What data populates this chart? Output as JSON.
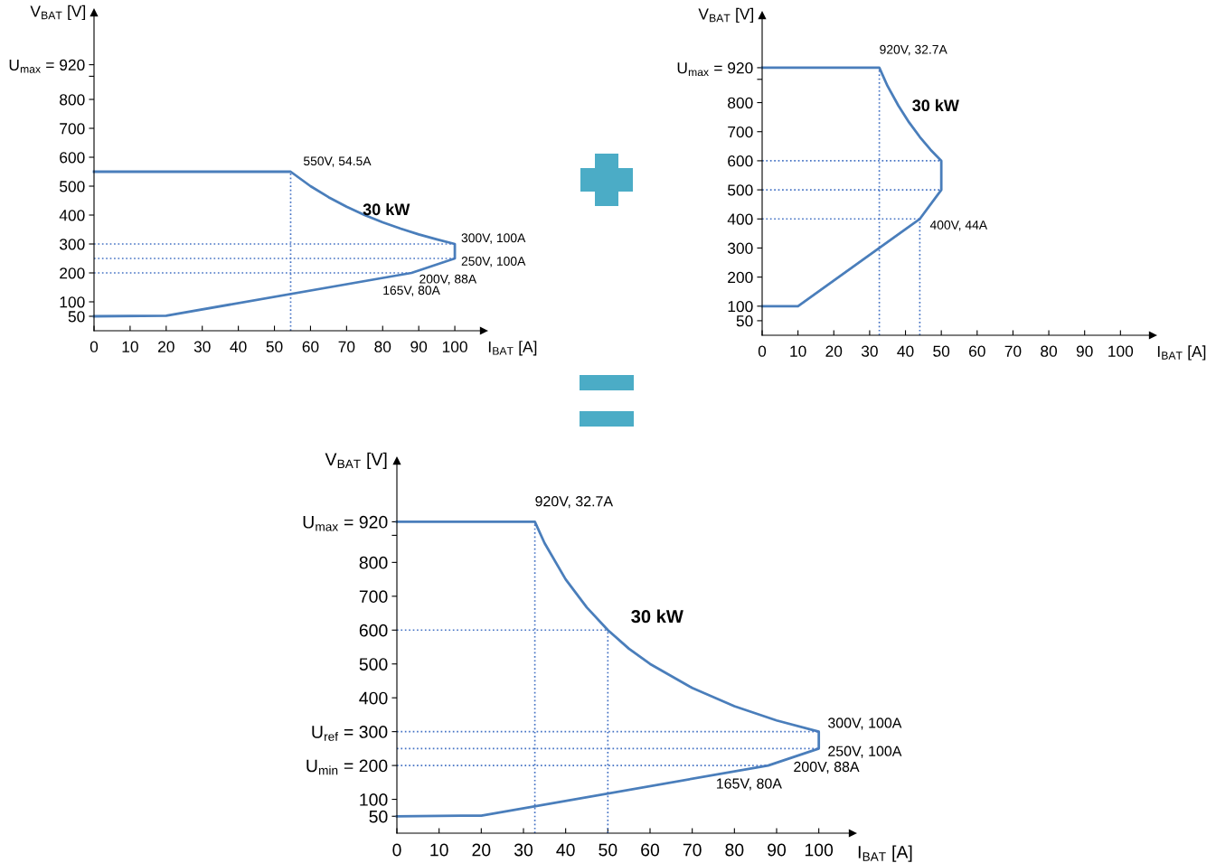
{
  "chart_data": [
    {
      "type": "line",
      "xlabel": "I$_{BAT}$ [A]",
      "ylabel": "V$_{BAT}$ [V]",
      "xlim": [
        0,
        108
      ],
      "ylim": [
        0,
        1100
      ],
      "xticks": [
        0,
        10,
        20,
        30,
        40,
        50,
        60,
        70,
        80,
        90,
        100
      ],
      "yticks": [
        50,
        100,
        200,
        300,
        400,
        500,
        600,
        700,
        800,
        {
          "value": 880,
          "label": null
        },
        {
          "value": 920,
          "label": "U$_{max}$ = 920"
        }
      ],
      "series": [
        {
          "color": "#4a7ebb",
          "line_style": "solid",
          "x": [
            0,
            54.5,
            60,
            65,
            70,
            75,
            80,
            85,
            90,
            95,
            100,
            100,
            88,
            20,
            0
          ],
          "values": [
            550,
            550,
            500,
            462,
            429,
            400,
            375,
            353,
            333,
            316,
            300,
            250,
            200,
            52,
            50
          ]
        },
        {
          "color": "#4472c4",
          "line_style": "dotted",
          "x": [
            54.5,
            54.5
          ],
          "values": [
            0,
            550
          ]
        },
        {
          "color": "#4472c4",
          "line_style": "dotted",
          "x": [
            0,
            100
          ],
          "values": [
            300,
            300
          ]
        },
        {
          "color": "#4472c4",
          "line_style": "dotted",
          "x": [
            0,
            100
          ],
          "values": [
            250,
            250
          ]
        },
        {
          "color": "#4472c4",
          "line_style": "dotted",
          "x": [
            0,
            88
          ],
          "values": [
            200,
            200
          ]
        }
      ],
      "annotations": [
        {
          "text": "550V, 54.5A",
          "x": 54.5,
          "y": 550
        },
        {
          "text": "300V, 100A",
          "x": 100,
          "y": 300
        },
        {
          "text": "250V, 100A",
          "x": 100,
          "y": 250
        },
        {
          "text": "200V, 88A",
          "x": 88,
          "y": 200
        },
        {
          "text": "165V, 80A",
          "x": 80,
          "y": 165
        },
        "30 kW"
      ]
    },
    {
      "type": "line",
      "xlabel": "I$_{BAT}$ [A]",
      "ylabel": "V$_{BAT}$ [V]",
      "xlim": [
        0,
        109
      ],
      "ylim": [
        0,
        1100
      ],
      "xticks": [
        0,
        10,
        20,
        30,
        40,
        50,
        60,
        70,
        80,
        90,
        100
      ],
      "yticks": [
        50,
        100,
        200,
        300,
        400,
        500,
        600,
        700,
        800,
        {
          "value": 880,
          "label": null
        },
        {
          "value": 920,
          "label": "U$_{max}$ = 920"
        }
      ],
      "series": [
        {
          "color": "#4a7ebb",
          "line_style": "solid",
          "x": [
            0,
            32.7,
            35,
            38,
            41,
            44,
            47,
            50,
            50,
            44,
            10,
            0
          ],
          "values": [
            920,
            920,
            857,
            790,
            732,
            682,
            638,
            600,
            500,
            400,
            100,
            100
          ]
        },
        {
          "color": "#4472c4",
          "line_style": "dotted",
          "x": [
            32.7,
            32.7
          ],
          "values": [
            0,
            920
          ]
        },
        {
          "color": "#4472c4",
          "line_style": "dotted",
          "x": [
            44,
            44
          ],
          "values": [
            0,
            400
          ]
        },
        {
          "color": "#4472c4",
          "line_style": "dotted",
          "x": [
            0,
            50
          ],
          "values": [
            600,
            600
          ]
        },
        {
          "color": "#4472c4",
          "line_style": "dotted",
          "x": [
            0,
            50
          ],
          "values": [
            500,
            500
          ]
        },
        {
          "color": "#4472c4",
          "line_style": "dotted",
          "x": [
            0,
            44
          ],
          "values": [
            400,
            400
          ]
        }
      ],
      "annotations": [
        {
          "text": "920V, 32.7A",
          "x": 32.7,
          "y": 920
        },
        {
          "text": "400V, 44A",
          "x": 44,
          "y": 400
        },
        "30 kW"
      ]
    },
    {
      "type": "line",
      "xlabel": "I$_{BAT}$ [A]",
      "ylabel": "V$_{BAT}$ [V]",
      "xlim": [
        0,
        108
      ],
      "ylim": [
        0,
        1100
      ],
      "xticks": [
        0,
        10,
        20,
        30,
        40,
        50,
        60,
        70,
        80,
        90,
        100
      ],
      "yticks": [
        50,
        100,
        {
          "value": 200,
          "label": "U$_{min}$ = 200"
        },
        {
          "value": 300,
          "label": "U$_{ref}$ = 300"
        },
        400,
        500,
        600,
        700,
        800,
        {
          "value": 880,
          "label": null
        },
        {
          "value": 920,
          "label": "U$_{max}$ = 920"
        }
      ],
      "series": [
        {
          "color": "#4a7ebb",
          "line_style": "solid",
          "x": [
            0,
            32.7,
            35,
            40,
            45,
            50,
            55,
            60,
            70,
            80,
            90,
            100,
            100,
            88,
            20,
            0
          ],
          "values": [
            920,
            920,
            857,
            750,
            667,
            600,
            545,
            500,
            429,
            375,
            333,
            300,
            250,
            200,
            52,
            50
          ]
        },
        {
          "color": "#4472c4",
          "line_style": "dotted",
          "x": [
            32.7,
            32.7
          ],
          "values": [
            0,
            920
          ]
        },
        {
          "color": "#4472c4",
          "line_style": "dotted",
          "x": [
            50,
            50
          ],
          "values": [
            0,
            600
          ]
        },
        {
          "color": "#4472c4",
          "line_style": "dotted",
          "x": [
            0,
            50
          ],
          "values": [
            600,
            600
          ]
        },
        {
          "color": "#4472c4",
          "line_style": "dotted",
          "x": [
            0,
            100
          ],
          "values": [
            300,
            300
          ]
        },
        {
          "color": "#4472c4",
          "line_style": "dotted",
          "x": [
            0,
            100
          ],
          "values": [
            250,
            250
          ]
        },
        {
          "color": "#4472c4",
          "line_style": "dotted",
          "x": [
            0,
            88
          ],
          "values": [
            200,
            200
          ]
        }
      ],
      "annotations": [
        {
          "text": "920V, 32.7A",
          "x": 32.7,
          "y": 920
        },
        {
          "text": "300V, 100A",
          "x": 100,
          "y": 300
        },
        {
          "text": "250V, 100A",
          "x": 100,
          "y": 250
        },
        {
          "text": "200V, 88A",
          "x": 88,
          "y": 200
        },
        "165V, 80A",
        "30 kW"
      ]
    }
  ]
}
